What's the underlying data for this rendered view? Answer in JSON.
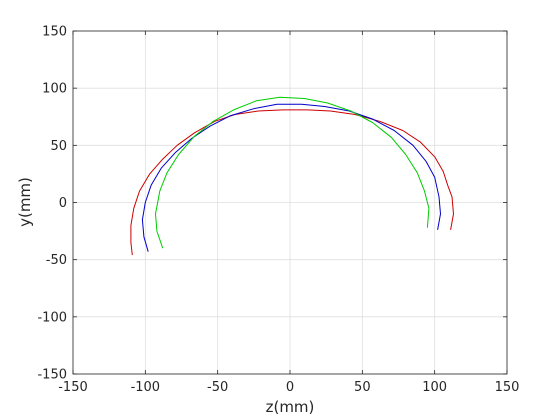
{
  "chart_data": {
    "type": "line",
    "xlabel": "z(mm)",
    "ylabel": "y(mm)",
    "xlim": [
      -150,
      150
    ],
    "ylim": [
      -150,
      150
    ],
    "xticks": [
      -150,
      -100,
      -50,
      0,
      50,
      100,
      150
    ],
    "yticks": [
      -150,
      -100,
      -50,
      0,
      50,
      100,
      150
    ],
    "xtick_labels": [
      "-150",
      "-100",
      "-50",
      "0",
      "50",
      "100",
      "150"
    ],
    "ytick_labels": [
      "-150",
      "-100",
      "-50",
      "0",
      "50",
      "100",
      "150"
    ],
    "grid": true,
    "series": [
      {
        "color": "#cc0000",
        "x": [
          -109,
          -110,
          -110,
          -108,
          -104,
          -97,
          -88,
          -78,
          -66,
          -52,
          -38,
          -22,
          -5,
          12,
          28,
          45,
          62,
          78,
          90,
          100,
          106,
          109,
          112,
          113,
          111
        ],
        "y": [
          -46,
          -35,
          -20,
          -5,
          10,
          25,
          38,
          50,
          61,
          71,
          77,
          80,
          81,
          81,
          80,
          77,
          71,
          63,
          53,
          40,
          27,
          15,
          5,
          -10,
          -24
        ]
      },
      {
        "color": "#0000cc",
        "x": [
          -98,
          -101,
          -102,
          -100,
          -96,
          -89,
          -79,
          -68,
          -55,
          -41,
          -25,
          -9,
          8,
          24,
          41,
          57,
          72,
          85,
          94,
          100,
          103,
          104,
          102
        ],
        "y": [
          -43,
          -30,
          -15,
          0,
          15,
          30,
          44,
          56,
          67,
          76,
          82,
          86,
          86,
          84,
          80,
          73,
          63,
          50,
          36,
          22,
          5,
          -10,
          -24
        ]
      },
      {
        "color": "#00cc00",
        "x": [
          -88,
          -92,
          -93,
          -90,
          -85,
          -77,
          -66,
          -53,
          -39,
          -23,
          -7,
          10,
          26,
          42,
          57,
          70,
          80,
          88,
          93,
          96,
          95
        ],
        "y": [
          -40,
          -25,
          -10,
          10,
          26,
          42,
          58,
          71,
          81,
          89,
          92,
          91,
          87,
          80,
          70,
          57,
          42,
          26,
          10,
          -5,
          -22
        ]
      }
    ]
  }
}
